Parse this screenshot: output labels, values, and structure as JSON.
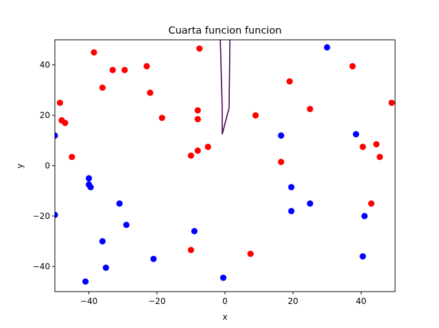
{
  "chart_data": {
    "type": "scatter",
    "title": "Cuarta funcion funcion",
    "xlabel": "x",
    "ylabel": "y",
    "xlim": [
      -50,
      50
    ],
    "ylim": [
      -50,
      50
    ],
    "xticks": [
      -40,
      -20,
      0,
      20,
      40
    ],
    "yticks": [
      -40,
      -20,
      0,
      20,
      40
    ],
    "grid": false,
    "series": [
      {
        "color": "#ff0000",
        "marker": "circle",
        "points": [
          [
            -38.5,
            45
          ],
          [
            -33,
            38
          ],
          [
            -29.5,
            38
          ],
          [
            -36,
            31
          ],
          [
            -23,
            39.5
          ],
          [
            -22,
            29
          ],
          [
            -48.5,
            25
          ],
          [
            -48,
            18
          ],
          [
            -47,
            17
          ],
          [
            -45,
            3.5
          ],
          [
            -18.5,
            19
          ],
          [
            -7.5,
            46.5
          ],
          [
            -8,
            22
          ],
          [
            -8,
            18.5
          ],
          [
            -8,
            6
          ],
          [
            -10,
            4
          ],
          [
            -5,
            7.5
          ],
          [
            -10,
            -33.5
          ],
          [
            9,
            20
          ],
          [
            7.5,
            -35
          ],
          [
            19,
            33.5
          ],
          [
            25,
            22.5
          ],
          [
            16.5,
            1.5
          ],
          [
            37.5,
            39.5
          ],
          [
            40.5,
            7.5
          ],
          [
            44.5,
            8.5
          ],
          [
            45.5,
            3.5
          ],
          [
            49,
            25
          ],
          [
            43,
            -15
          ]
        ]
      },
      {
        "color": "#0000ff",
        "marker": "circle",
        "points": [
          [
            30,
            47
          ],
          [
            -50,
            12
          ],
          [
            -40,
            -5
          ],
          [
            -40,
            -7.5
          ],
          [
            -39.5,
            -8.5
          ],
          [
            -50,
            -19.5
          ],
          [
            -31,
            -15
          ],
          [
            -29,
            -23.5
          ],
          [
            -36,
            -30
          ],
          [
            -35,
            -40.5
          ],
          [
            -41,
            -46
          ],
          [
            -21,
            -37
          ],
          [
            -9,
            -26
          ],
          [
            -0.5,
            -44.5
          ],
          [
            16.5,
            12
          ],
          [
            19.5,
            -8.5
          ],
          [
            19.5,
            -18
          ],
          [
            25,
            -15
          ],
          [
            38.5,
            12.5
          ],
          [
            41,
            -20
          ],
          [
            40.5,
            -36
          ]
        ]
      }
    ],
    "line": {
      "color": "#440154",
      "points": [
        [
          -1.5,
          55
        ],
        [
          -0.8,
          23
        ],
        [
          -0.8,
          12.5
        ],
        [
          1.2,
          23
        ],
        [
          1.5,
          55
        ]
      ]
    }
  }
}
